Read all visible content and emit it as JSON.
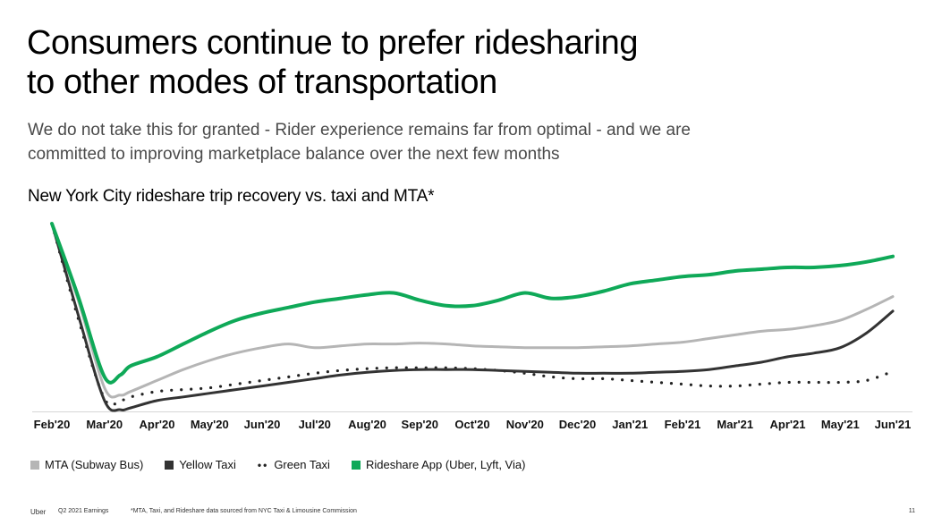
{
  "slide": {
    "title_lines": [
      "Consumers continue to prefer ridesharing",
      "to other modes of transportation"
    ],
    "subtitle_lines": [
      "We do not take this for granted - Rider experience remains far from optimal - and we are",
      "committed to improving marketplace balance over the next few months"
    ]
  },
  "footer": {
    "brand": "Uber",
    "report": "Q2 2021 Earnings",
    "note": "*MTA, Taxi, and Rideshare data sourced from NYC Taxi & Limousine Commission",
    "page": "11"
  },
  "chart_data": {
    "type": "line",
    "title": "New York City rideshare trip recovery vs. taxi and MTA*",
    "xlabel": "",
    "ylabel": "",
    "ylim": [
      0,
      100
    ],
    "y_axis_shown": false,
    "grid": false,
    "legend_position": "bottom-left",
    "categories": [
      "Feb'20",
      "Mar'20",
      "Apr'20",
      "May'20",
      "Jun'20",
      "Jul'20",
      "Aug'20",
      "Sep'20",
      "Oct'20",
      "Nov'20",
      "Dec'20",
      "Jan'21",
      "Feb'21",
      "Mar'21",
      "Apr'21",
      "May'21",
      "Jun'21"
    ],
    "x": [
      0,
      0.5,
      1,
      1.3,
      1.5,
      2,
      2.5,
      3,
      3.5,
      4,
      4.5,
      5,
      5.5,
      6,
      6.5,
      7,
      7.5,
      8,
      8.5,
      9,
      9.5,
      10,
      10.5,
      11,
      11.5,
      12,
      12.5,
      13,
      13.5,
      14,
      14.5,
      15,
      15.5,
      16
    ],
    "series": [
      {
        "name": "MTA (Subway Bus)",
        "color": "#b5b5b5",
        "style": "solid",
        "values": [
          100,
          58,
          10,
          6,
          8,
          14,
          20,
          25,
          29,
          32,
          34,
          32,
          33,
          34,
          34,
          34.5,
          34,
          33,
          32.5,
          32,
          32,
          32,
          32.5,
          33,
          34,
          35,
          37,
          39,
          41,
          42,
          44,
          47,
          53,
          60
        ]
      },
      {
        "name": "Yellow Taxi",
        "color": "#333333",
        "style": "solid",
        "values": [
          100,
          50,
          3,
          -2,
          -1,
          3,
          5,
          7,
          9,
          11,
          13,
          15,
          17,
          18.5,
          19.5,
          20,
          20,
          20,
          19.5,
          19,
          18.5,
          18,
          18,
          18,
          18.5,
          19,
          20,
          22,
          24,
          27,
          29,
          32,
          40,
          52
        ]
      },
      {
        "name": "Green Taxi",
        "color": "#222222",
        "style": "dotted",
        "values": [
          100,
          48,
          4,
          3,
          5,
          8,
          9,
          10,
          12,
          14,
          16,
          18,
          19.5,
          20.5,
          21,
          21,
          21,
          20.5,
          19.5,
          18,
          16,
          15,
          15,
          14,
          13,
          12,
          11,
          11,
          12,
          13,
          13,
          13,
          14,
          19
        ]
      },
      {
        "name": "Rideshare App (Uber, Lyft, Via)",
        "color": "#0fa958",
        "style": "solid",
        "values": [
          100,
          60,
          16,
          17,
          22,
          27,
          34,
          41,
          47,
          51,
          54,
          57,
          59,
          61,
          62,
          58,
          55,
          55,
          58,
          62,
          59,
          60,
          63,
          67,
          69,
          71,
          72,
          74,
          75,
          76,
          76,
          77,
          79,
          82
        ]
      }
    ]
  }
}
